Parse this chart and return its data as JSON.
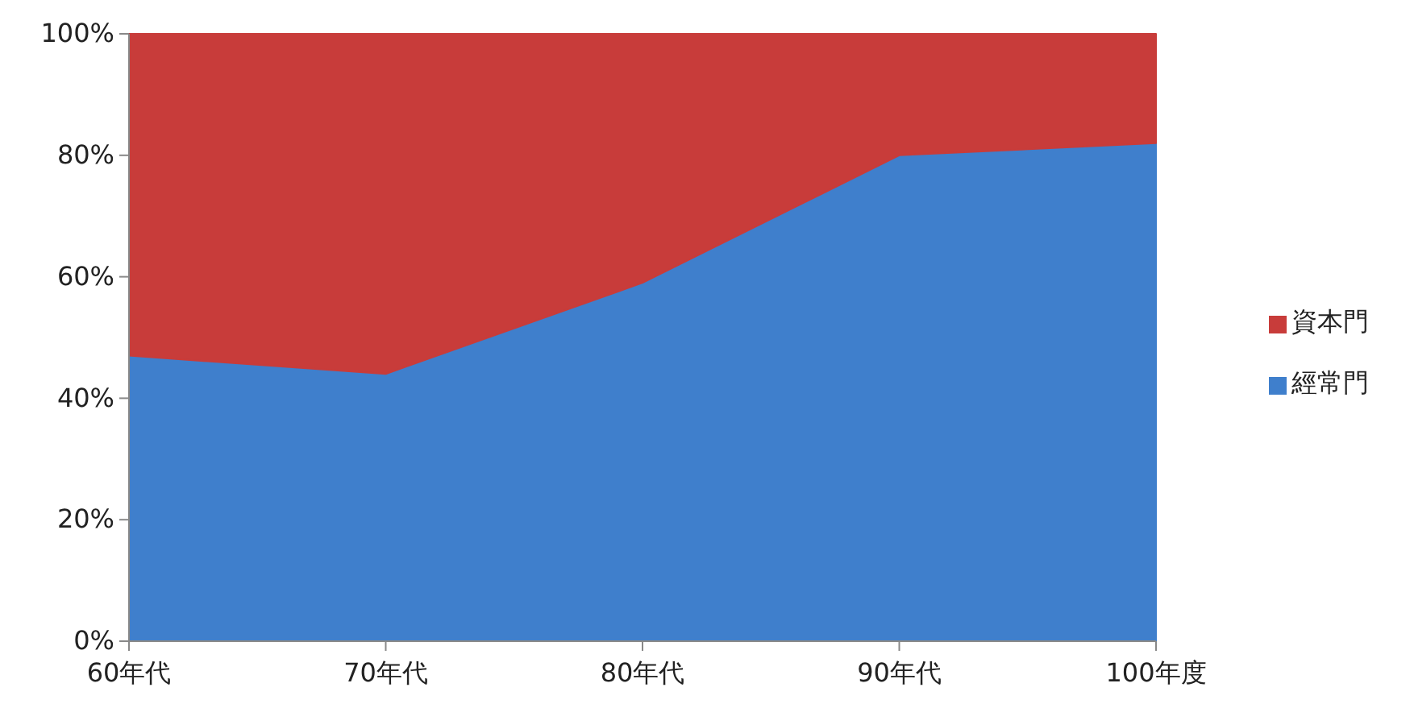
{
  "chart_data": {
    "type": "area",
    "stacked": true,
    "categories": [
      "60年代",
      "70年代",
      "80年代",
      "90年代",
      "100年度"
    ],
    "series": [
      {
        "name": "經常門",
        "color": "#3f7fcc",
        "values": [
          47,
          44,
          59,
          80,
          82
        ]
      },
      {
        "name": "資本門",
        "color": "#c83c3a",
        "values": [
          53,
          56,
          41,
          20,
          18
        ]
      }
    ],
    "ylim": [
      0,
      100
    ],
    "yticks": [
      {
        "value": 0,
        "label": "0%"
      },
      {
        "value": 20,
        "label": "20%"
      },
      {
        "value": 40,
        "label": "40%"
      },
      {
        "value": 60,
        "label": "60%"
      },
      {
        "value": 80,
        "label": "80%"
      },
      {
        "value": 100,
        "label": "100%"
      }
    ],
    "legend": "right",
    "grid": false
  }
}
